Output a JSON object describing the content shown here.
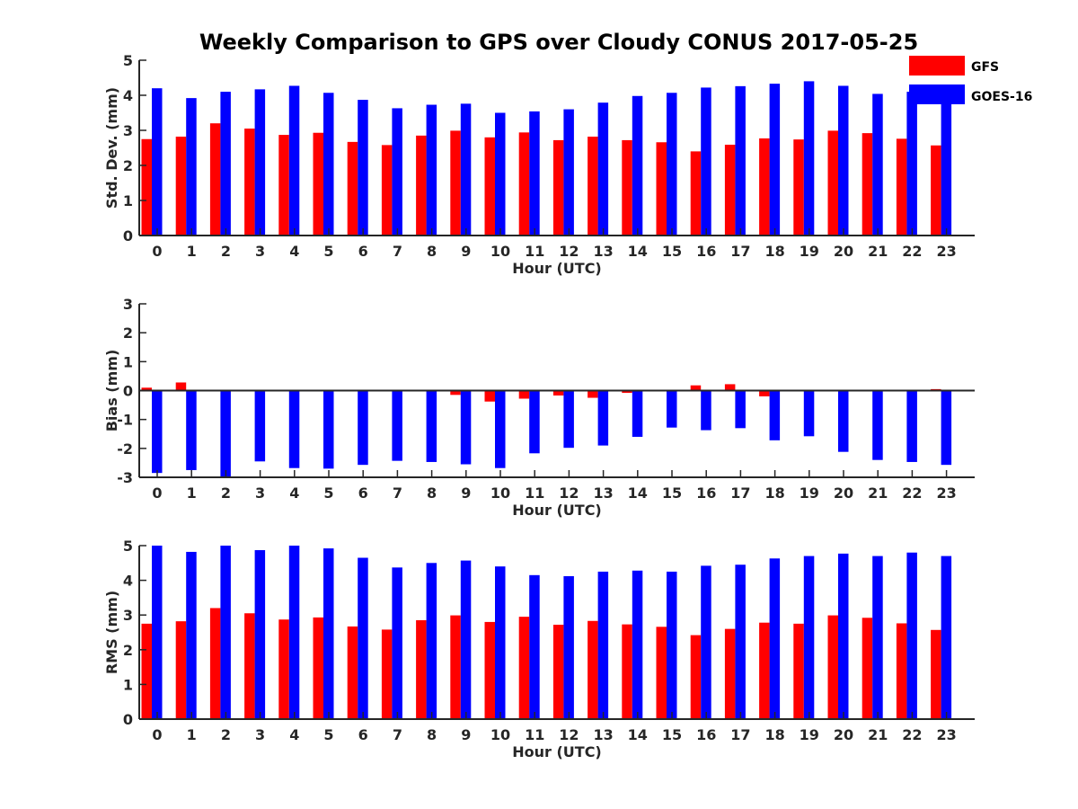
{
  "figure": {
    "title": "Weekly Comparison to GPS over Cloudy CONUS 2017-05-25"
  },
  "legend": {
    "placement": "top-right",
    "entries": [
      {
        "name": "GFS",
        "color": "#ff0000"
      },
      {
        "name": "GOES-16",
        "color": "#0000ff"
      }
    ]
  },
  "chart_data": [
    {
      "type": "bar",
      "title": "Weekly Comparison to GPS over Cloudy CONUS 2017-05-25",
      "xlabel": "Hour (UTC)",
      "ylabel": "Std. Dev. (mm)",
      "ylim": [
        0,
        5
      ],
      "yticks": [
        "0",
        "1",
        "2",
        "3",
        "4",
        "5"
      ],
      "categories": [
        "0",
        "1",
        "2",
        "3",
        "4",
        "5",
        "6",
        "7",
        "8",
        "9",
        "10",
        "11",
        "12",
        "13",
        "14",
        "15",
        "16",
        "17",
        "18",
        "19",
        "20",
        "21",
        "22",
        "23"
      ],
      "series": [
        {
          "name": "GFS",
          "color": "#ff0000",
          "values": [
            2.75,
            2.82,
            3.2,
            3.05,
            2.87,
            2.93,
            2.67,
            2.58,
            2.85,
            2.99,
            2.8,
            2.94,
            2.72,
            2.82,
            2.72,
            2.66,
            2.4,
            2.59,
            2.77,
            2.74,
            2.99,
            2.92,
            2.76,
            2.57
          ]
        },
        {
          "name": "GOES-16",
          "color": "#0000ff",
          "values": [
            4.2,
            3.92,
            4.1,
            4.17,
            4.27,
            4.07,
            3.87,
            3.63,
            3.73,
            3.76,
            3.5,
            3.54,
            3.6,
            3.79,
            3.98,
            4.07,
            4.22,
            4.26,
            4.33,
            4.4,
            4.27,
            4.04,
            4.1,
            3.8
          ]
        }
      ]
    },
    {
      "type": "bar",
      "xlabel": "Hour (UTC)",
      "ylabel": "Bias (mm)",
      "ylim": [
        -3,
        3
      ],
      "yticks": [
        "-3",
        "-2",
        "-1",
        "0",
        "1",
        "2",
        "3"
      ],
      "zero_line": true,
      "categories": [
        "0",
        "1",
        "2",
        "3",
        "4",
        "5",
        "6",
        "7",
        "8",
        "9",
        "10",
        "11",
        "12",
        "13",
        "14",
        "15",
        "16",
        "17",
        "18",
        "19",
        "20",
        "21",
        "22",
        "23"
      ],
      "series": [
        {
          "name": "GFS",
          "color": "#ff0000",
          "values": [
            0.1,
            0.28,
            0.0,
            0.0,
            0.0,
            -0.03,
            0.02,
            -0.03,
            -0.02,
            -0.15,
            -0.38,
            -0.28,
            -0.17,
            -0.25,
            -0.08,
            0.0,
            0.18,
            0.22,
            -0.2,
            0.0,
            0.02,
            0.02,
            -0.03,
            0.05
          ]
        },
        {
          "name": "GOES-16",
          "color": "#0000ff",
          "values": [
            -2.85,
            -2.75,
            -3.0,
            -2.45,
            -2.68,
            -2.7,
            -2.57,
            -2.43,
            -2.47,
            -2.55,
            -2.68,
            -2.17,
            -1.98,
            -1.9,
            -1.6,
            -1.28,
            -1.37,
            -1.3,
            -1.72,
            -1.58,
            -2.12,
            -2.4,
            -2.47,
            -2.57
          ]
        }
      ]
    },
    {
      "type": "bar",
      "xlabel": "Hour (UTC)",
      "ylabel": "RMS (mm)",
      "ylim": [
        0,
        5
      ],
      "yticks": [
        "0",
        "1",
        "2",
        "3",
        "4",
        "5"
      ],
      "categories": [
        "0",
        "1",
        "2",
        "3",
        "4",
        "5",
        "6",
        "7",
        "8",
        "9",
        "10",
        "11",
        "12",
        "13",
        "14",
        "15",
        "16",
        "17",
        "18",
        "19",
        "20",
        "21",
        "22",
        "23"
      ],
      "series": [
        {
          "name": "GFS",
          "color": "#ff0000",
          "values": [
            2.75,
            2.82,
            3.2,
            3.05,
            2.87,
            2.93,
            2.67,
            2.58,
            2.85,
            2.99,
            2.8,
            2.95,
            2.72,
            2.83,
            2.73,
            2.66,
            2.42,
            2.6,
            2.78,
            2.75,
            2.99,
            2.92,
            2.76,
            2.57
          ]
        },
        {
          "name": "GOES-16",
          "color": "#0000ff",
          "values": [
            5.05,
            4.82,
            5.05,
            4.87,
            5.02,
            4.92,
            4.65,
            4.37,
            4.5,
            4.57,
            4.4,
            4.15,
            4.12,
            4.25,
            4.28,
            4.25,
            4.42,
            4.45,
            4.63,
            4.7,
            4.77,
            4.7,
            4.8,
            4.7
          ]
        }
      ]
    }
  ]
}
